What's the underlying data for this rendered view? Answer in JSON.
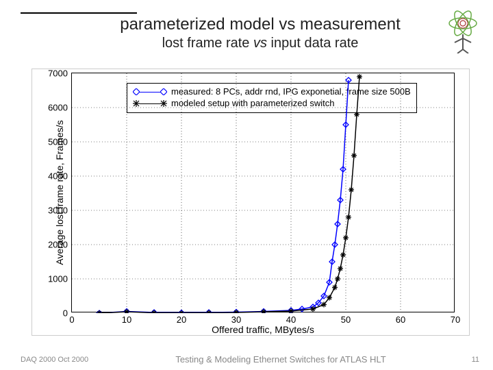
{
  "title": {
    "main": "parameterized model vs measurement",
    "sub_pre": "lost frame rate ",
    "sub_em": "vs",
    "sub_post": " input data rate"
  },
  "chart": {
    "type": "line",
    "xlabel": "Offered traffic, MBytes/s",
    "ylabel": "Average lost frame rate, Frames/s",
    "xlim": [
      0,
      70
    ],
    "ylim": [
      0,
      7000
    ],
    "xtick_step": 10,
    "ytick_step": 1000,
    "background_color": "#ffffff",
    "grid_color": "#000000",
    "grid_dash": "1,3",
    "axis_fontsize": 14,
    "tick_fontsize": 13,
    "series": [
      {
        "name": "measured",
        "label": "measured: 8 PCs, addr rnd, IPG exponetial, frame size 500B",
        "color": "#0000ff",
        "marker": "diamond",
        "marker_size": 8,
        "line_width": 1.5,
        "x": [
          5,
          10,
          15,
          20,
          25,
          30,
          35,
          40,
          42,
          44,
          45,
          46,
          47,
          47.5,
          48,
          48.5,
          49,
          49.5,
          50,
          50.5
        ],
        "y": [
          0,
          50,
          20,
          10,
          20,
          30,
          50,
          80,
          120,
          180,
          300,
          500,
          900,
          1500,
          2000,
          2600,
          3300,
          4200,
          5500,
          6800
        ]
      },
      {
        "name": "modeled",
        "label": "modeled setup with parameterized switch",
        "color": "#000000",
        "marker": "star",
        "marker_size": 8,
        "line_width": 1.5,
        "x": [
          5,
          10,
          15,
          20,
          25,
          30,
          35,
          40,
          44,
          46,
          47,
          48,
          48.5,
          49,
          49.5,
          50,
          50.5,
          51,
          51.5,
          52,
          52.5
        ],
        "y": [
          0,
          40,
          10,
          0,
          10,
          20,
          40,
          60,
          120,
          250,
          450,
          750,
          1000,
          1300,
          1700,
          2200,
          2800,
          3600,
          4600,
          5800,
          6900
        ]
      }
    ]
  },
  "footer": {
    "left": "DAQ 2000 Oct 2000",
    "center": "Testing & Modeling Ethernet Switches for ATLAS HLT",
    "page": "11"
  }
}
